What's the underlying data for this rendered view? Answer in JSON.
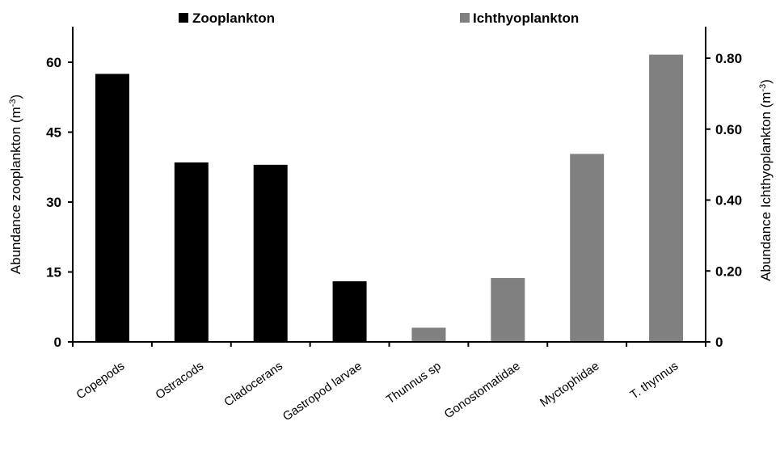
{
  "chart_data": {
    "type": "bar",
    "categories": [
      "Copepods",
      "Ostracods",
      "Cladocerans",
      "Gastropod larvae",
      "Thunnus sp",
      "Gonostomatidae",
      "Myctophidae",
      "T. thynnus"
    ],
    "series": [
      {
        "name": "Zooplankton",
        "axis": "left",
        "color": "#000000",
        "values": [
          57.5,
          38.5,
          38.0,
          13.0,
          null,
          null,
          null,
          null
        ]
      },
      {
        "name": "Ichthyoplankton",
        "axis": "right",
        "color": "#808080",
        "values": [
          null,
          null,
          null,
          null,
          0.04,
          0.18,
          0.53,
          0.81
        ]
      }
    ],
    "ylabel_left": "Abundance zooplankton (m",
    "ylabel_left_sup": "-3",
    "ylabel_right": "Abundance Ichthyoplankton (m",
    "ylabel_right_sup": "-3",
    "ylim_left": [
      0,
      70
    ],
    "ylim_right": [
      0,
      0.9
    ],
    "yticks_left": [
      "0",
      "15",
      "30",
      "45",
      "60"
    ],
    "yticks_left_values": [
      0,
      15,
      30,
      45,
      60
    ],
    "yticks_right": [
      "0",
      "0.20",
      "0.40",
      "0.60",
      "0.80"
    ],
    "yticks_right_values": [
      0,
      0.2,
      0.4,
      0.6,
      0.8
    ],
    "grid": false,
    "legend_position": "top"
  }
}
